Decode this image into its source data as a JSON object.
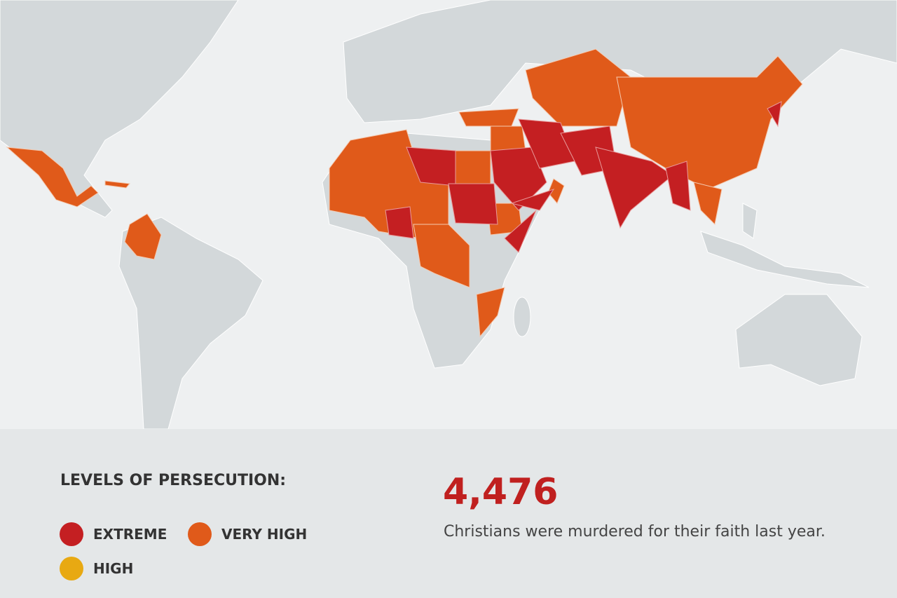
{
  "legend": {
    "title": "LEVELS OF PERSECUTION:",
    "items": [
      {
        "label": "EXTREME",
        "color": "#c41f22"
      },
      {
        "label": "VERY HIGH",
        "color": "#e05a1a"
      },
      {
        "label": "HIGH",
        "color": "#e8a912"
      }
    ]
  },
  "stat": {
    "number": "4,476",
    "caption": "Christians were murdered for their faith last year."
  }
}
